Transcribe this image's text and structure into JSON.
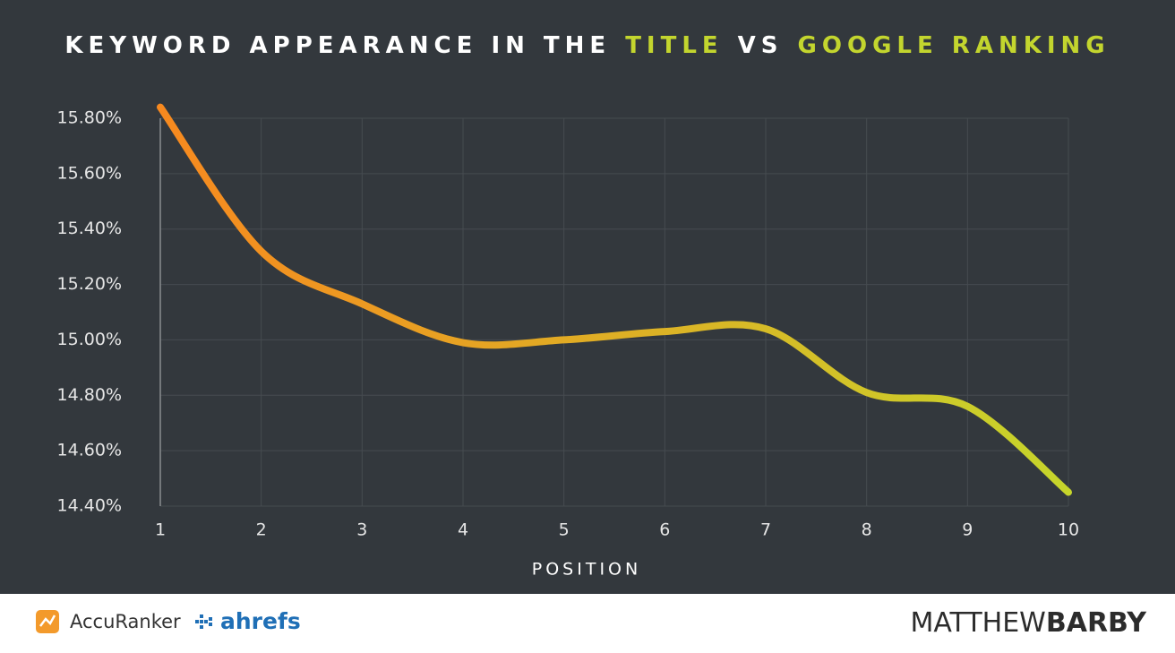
{
  "chart_data": {
    "type": "line",
    "title": [
      {
        "text": "KEYWORD APPEARANCE IN THE",
        "color": "#ffffff"
      },
      {
        "text": "TITLE",
        "color": "#c3d52e"
      },
      {
        "text": "VS",
        "color": "#ffffff"
      },
      {
        "text": "GOOGLE RANKING",
        "color": "#c3d52e"
      }
    ],
    "x_label": "POSITION",
    "x": [
      1,
      2,
      3,
      4,
      5,
      6,
      7,
      8,
      9,
      10
    ],
    "values": [
      15.84,
      15.32,
      15.13,
      14.99,
      15.0,
      15.03,
      15.04,
      14.81,
      14.76,
      14.45
    ],
    "gradient": [
      "#f7891f",
      "#c6d52b"
    ],
    "xlim": [
      1,
      10
    ],
    "xticks": [
      1,
      2,
      3,
      4,
      5,
      6,
      7,
      8,
      9,
      10
    ],
    "ylim": [
      14.4,
      15.8
    ],
    "yticks": [
      {
        "value": 14.4,
        "label": "14.40%"
      },
      {
        "value": 14.6,
        "label": "14.60%"
      },
      {
        "value": 14.8,
        "label": "14.80%"
      },
      {
        "value": 15.0,
        "label": "15.00%"
      },
      {
        "value": 15.2,
        "label": "15.20%"
      },
      {
        "value": 15.4,
        "label": "15.40%"
      },
      {
        "value": 15.6,
        "label": "15.60%"
      },
      {
        "value": 15.8,
        "label": "15.80%"
      }
    ],
    "grid": true
  },
  "footer": {
    "partners": [
      "AccuRanker",
      "ahrefs"
    ],
    "brand": [
      "MATTHEW",
      "BARBY"
    ]
  }
}
